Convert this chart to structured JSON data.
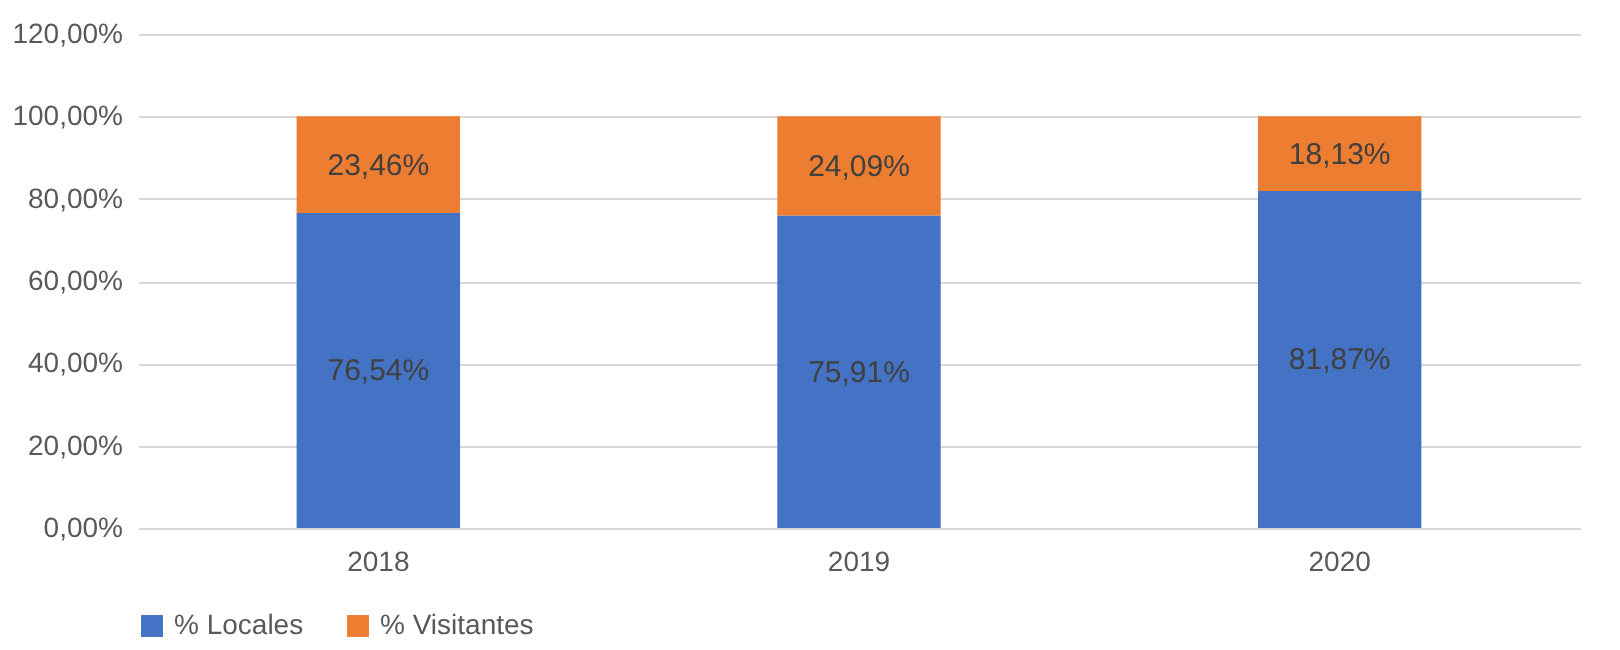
{
  "chart_data": {
    "type": "bar",
    "stacked": true,
    "categories": [
      "2018",
      "2019",
      "2020"
    ],
    "series": [
      {
        "name": "% Locales",
        "color": "#4472c4",
        "values": [
          76.54,
          75.91,
          81.87
        ],
        "value_labels": [
          "76,54%",
          "75,91%",
          "81,87%"
        ]
      },
      {
        "name": "% Visitantes",
        "color": "#ed7d31",
        "values": [
          23.46,
          24.09,
          18.13
        ],
        "value_labels": [
          "23,46%",
          "24,09%",
          "18,13%"
        ]
      }
    ],
    "ylim": [
      0,
      120
    ],
    "yticks": [
      {
        "value": 0,
        "label": "0,00%"
      },
      {
        "value": 20,
        "label": "20,00%"
      },
      {
        "value": 40,
        "label": "40,00%"
      },
      {
        "value": 60,
        "label": "60,00%"
      },
      {
        "value": 80,
        "label": "80,00%"
      },
      {
        "value": 100,
        "label": "100,00%"
      },
      {
        "value": 120,
        "label": "120,00%"
      }
    ],
    "grid": "y",
    "legend": "bottom"
  }
}
